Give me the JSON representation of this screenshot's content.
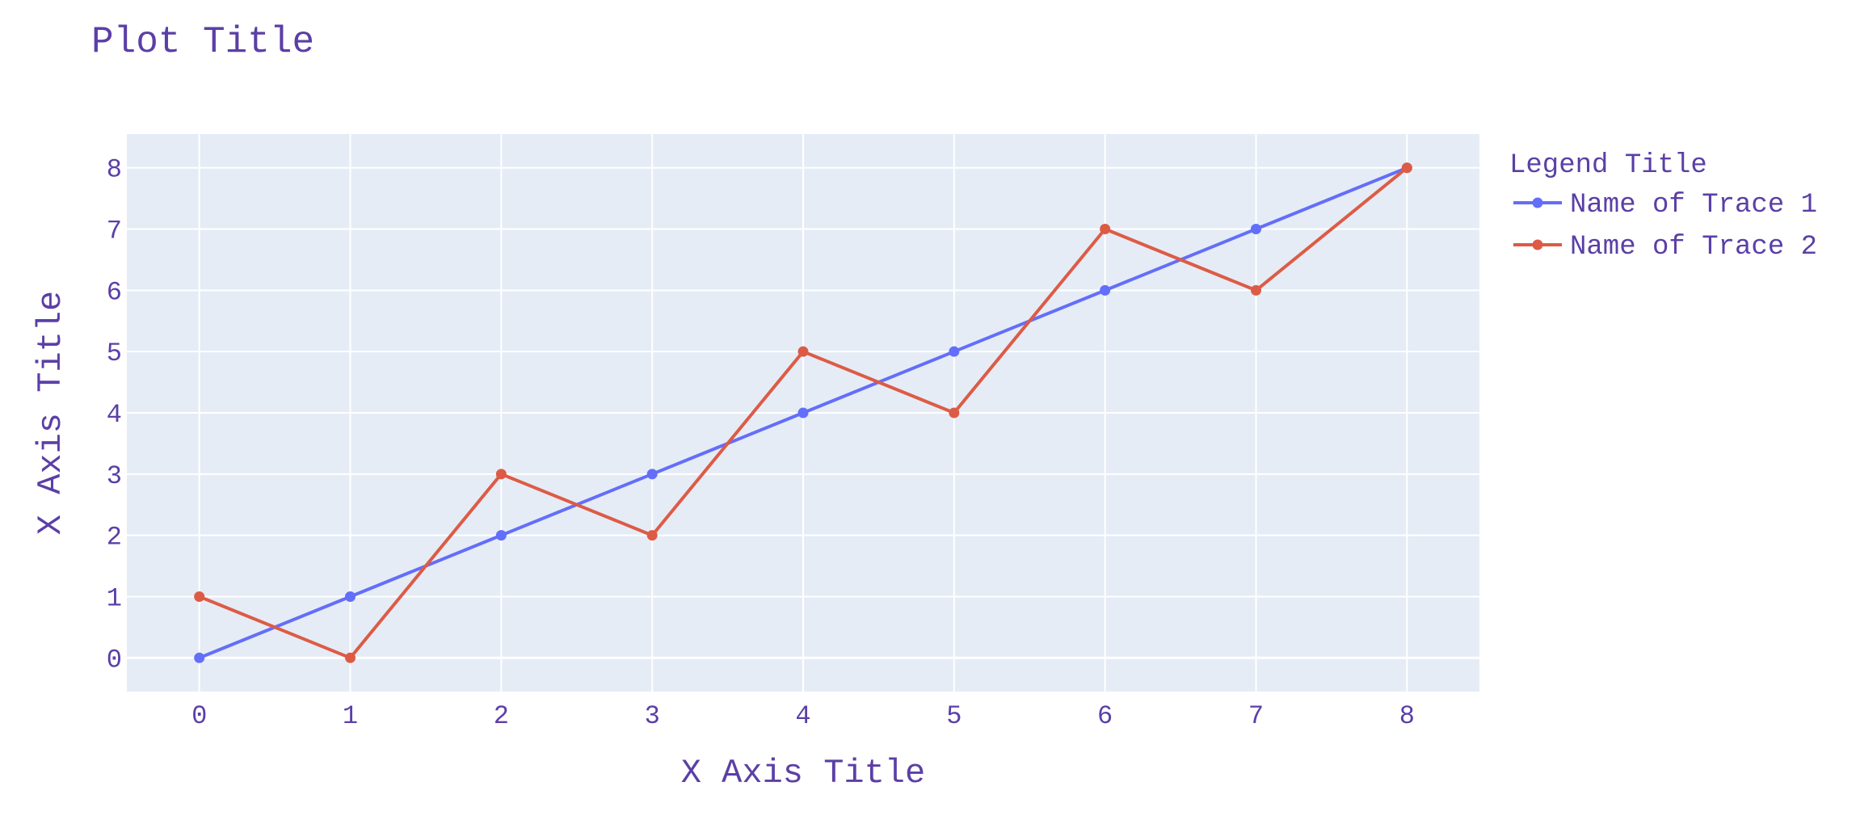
{
  "colors": {
    "plot_bg": "#e5ecf6",
    "grid": "#ffffff",
    "text": "#5b3fa6",
    "trace1": "#636efa",
    "trace2": "#dd5b45"
  },
  "chart_data": {
    "type": "line",
    "title": "Plot Title",
    "xlabel": "X Axis Title",
    "ylabel": "X Axis Title",
    "x": [
      0,
      1,
      2,
      3,
      4,
      5,
      6,
      7,
      8
    ],
    "xlim": [
      -0.48,
      8.48
    ],
    "ylim": [
      -0.55,
      8.55
    ],
    "xticks": [
      0,
      1,
      2,
      3,
      4,
      5,
      6,
      7,
      8
    ],
    "yticks": [
      0,
      1,
      2,
      3,
      4,
      5,
      6,
      7,
      8
    ],
    "grid": true,
    "legend": {
      "title": "Legend Title",
      "placement": "top-right, outside plot"
    },
    "markers": true,
    "series": [
      {
        "name": "Name of Trace 1",
        "color": "#636efa",
        "values": [
          0,
          1,
          2,
          3,
          4,
          5,
          6,
          7,
          8
        ]
      },
      {
        "name": "Name of Trace 2",
        "color": "#dd5b45",
        "values": [
          1,
          0,
          3,
          2,
          5,
          4,
          7,
          6,
          8
        ]
      }
    ]
  }
}
